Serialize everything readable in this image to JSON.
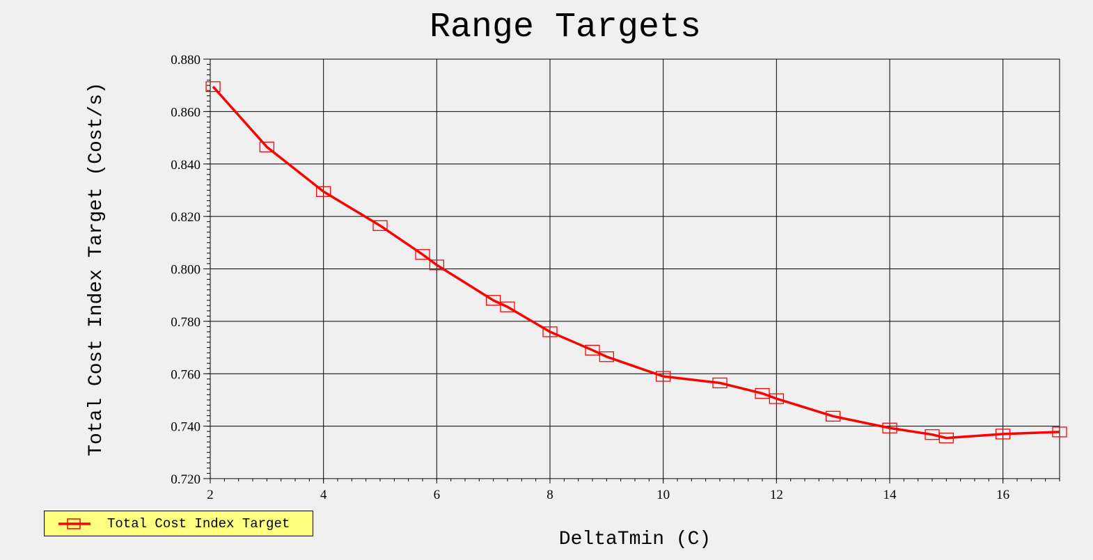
{
  "chart_data": {
    "type": "line",
    "title": "Range Targets",
    "xlabel": "DeltaTmin (C)",
    "ylabel": "Total Cost Index Target (Cost/s)",
    "xlim": [
      2,
      17
    ],
    "ylim": [
      0.72,
      0.88
    ],
    "x_ticks": [
      "2",
      "4",
      "6",
      "8",
      "10",
      "12",
      "14",
      "16"
    ],
    "y_ticks": [
      "0.720",
      "0.740",
      "0.760",
      "0.780",
      "0.800",
      "0.820",
      "0.840",
      "0.860",
      "0.880"
    ],
    "grid": true,
    "legend_position": "bottom-left",
    "series": [
      {
        "name": "Total Cost Index Target",
        "color": "#ff0000",
        "marker": "square",
        "x": [
          2.05,
          3.0,
          4.0,
          5.0,
          5.75,
          6.0,
          7.0,
          7.25,
          8.0,
          8.75,
          9.0,
          10.0,
          11.0,
          11.75,
          12.0,
          13.0,
          14.0,
          14.75,
          15.0,
          16.0,
          17.0
        ],
        "y": [
          0.8695,
          0.8465,
          0.8295,
          0.8165,
          0.8055,
          0.8015,
          0.788,
          0.7855,
          0.776,
          0.769,
          0.7665,
          0.759,
          0.7565,
          0.7525,
          0.7505,
          0.7438,
          0.7393,
          0.7368,
          0.7355,
          0.737,
          0.7378
        ]
      }
    ]
  }
}
